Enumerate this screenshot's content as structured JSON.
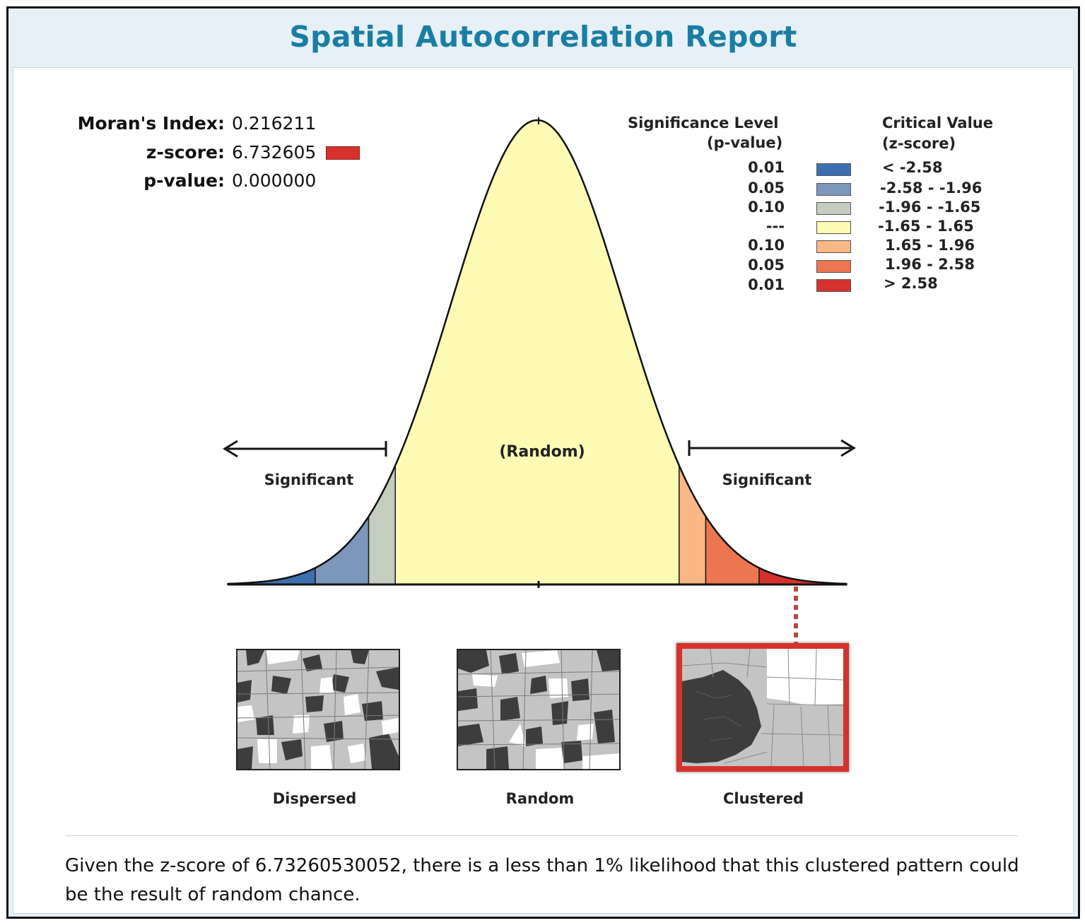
{
  "report": {
    "title": "Spatial Autocorrelation Report",
    "summary": "Given the z-score of 6.73260530052, there is a less than 1% likelihood that this clustered pattern could be the result of random chance."
  },
  "stats": {
    "morans_index_label": "Moran's Index:",
    "morans_index_value": "0.216211",
    "z_score_label": "z-score:",
    "z_score_value": "6.732605",
    "p_value_label": "p-value:",
    "p_value_value": "0.000000",
    "z_score_color": "#d7312d"
  },
  "legend": {
    "sig_header_1": "Significance Level",
    "sig_header_2": "(p-value)",
    "crit_header_1": "Critical Value",
    "crit_header_2": "(z-score)",
    "rows": [
      {
        "p": "0.01",
        "z": "< -2.58",
        "color": "#3b6fb0"
      },
      {
        "p": "0.05",
        "z": "-2.58 - -1.96",
        "color": "#7d97bb"
      },
      {
        "p": "0.10",
        "z": "-1.96 - -1.65",
        "color": "#c4cdbf"
      },
      {
        "p": "---",
        "z": "-1.65 - 1.65",
        "color": "#fdfbb4"
      },
      {
        "p": "0.10",
        "z": "1.65 - 1.96",
        "color": "#f9b785"
      },
      {
        "p": "0.05",
        "z": "1.96 - 2.58",
        "color": "#ec7650"
      },
      {
        "p": "0.01",
        "z": "> 2.58",
        "color": "#d7312d"
      }
    ]
  },
  "chart_data": {
    "type": "area",
    "distribution": "standard normal",
    "x_range": [
      -3.6,
      3.6
    ],
    "bands": [
      {
        "from": -3.6,
        "to": -2.58,
        "color": "#3b6fb0"
      },
      {
        "from": -2.58,
        "to": -1.96,
        "color": "#7d97bb"
      },
      {
        "from": -1.96,
        "to": -1.65,
        "color": "#c4cdbf"
      },
      {
        "from": -1.65,
        "to": 1.65,
        "color": "#fdfbb4"
      },
      {
        "from": 1.65,
        "to": 1.96,
        "color": "#f9b785"
      },
      {
        "from": 1.96,
        "to": 2.58,
        "color": "#ec7650"
      },
      {
        "from": 2.58,
        "to": 3.6,
        "color": "#d7312d"
      }
    ],
    "annotations": {
      "center": "(Random)",
      "left": "Significant",
      "right": "Significant"
    },
    "result_band": "> 2.58"
  },
  "patterns": {
    "items": [
      {
        "label": "Dispersed"
      },
      {
        "label": "Random"
      },
      {
        "label": "Clustered"
      }
    ],
    "selected": "Clustered"
  }
}
